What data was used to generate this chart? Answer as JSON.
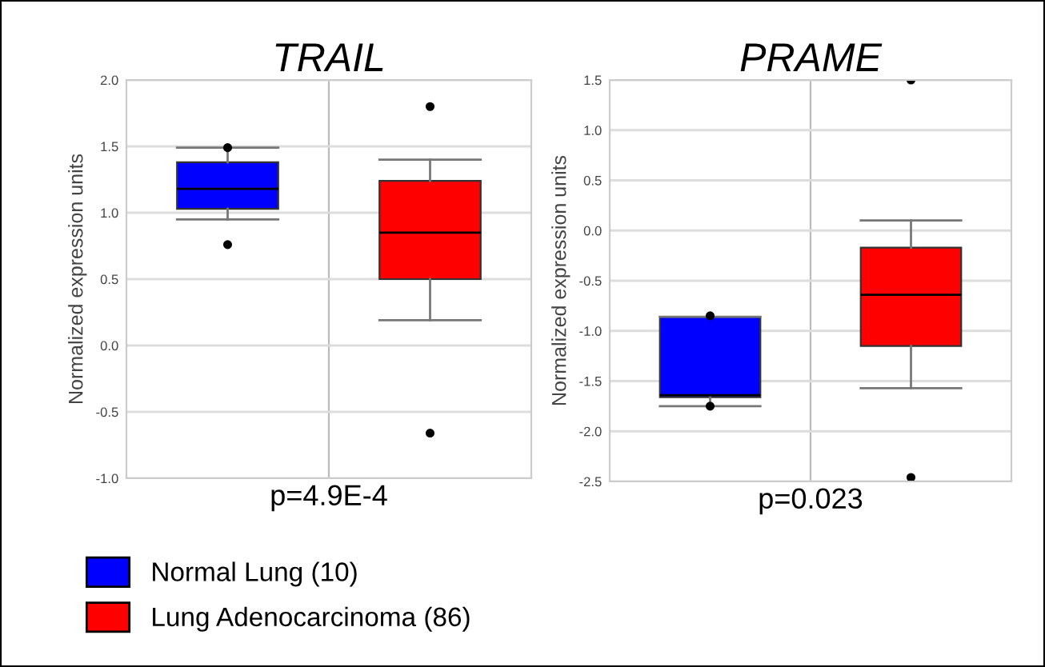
{
  "chart_data": [
    {
      "type": "box",
      "title": "TRAIL",
      "ylabel": "Normalized expression units",
      "categories": [
        null,
        null
      ],
      "ylim": [
        -1.0,
        2.0
      ],
      "yticks": [
        {
          "value": -1.0,
          "label": "-1.0"
        },
        {
          "value": -0.5,
          "label": "-0.5"
        },
        {
          "value": 0.0,
          "label": "0.0"
        },
        {
          "value": 0.5,
          "label": "0.5"
        },
        {
          "value": 1.0,
          "label": "1.0"
        },
        {
          "value": 1.5,
          "label": "1.5"
        },
        {
          "value": 2.0,
          "label": "2.0"
        }
      ],
      "grid": true,
      "legend": "bottom",
      "annotations": [
        "p=4.9E-4"
      ],
      "series": [
        {
          "name": "Normal Lung (10)",
          "color": "#0000ff",
          "boxes": [
            {
              "low": 0.95,
              "q1": 1.03,
              "median": 1.18,
              "q3": 1.38,
              "high": 1.49,
              "outliers": [
                1.49,
                0.76
              ]
            },
            null
          ]
        },
        {
          "name": "Lung Adenocarcinoma (86)",
          "color": "#ff0000",
          "boxes": [
            null,
            {
              "low": 0.19,
              "q1": 0.5,
              "median": 0.85,
              "q3": 1.24,
              "high": 1.4,
              "outliers": [
                1.8,
                -0.66
              ]
            }
          ]
        }
      ]
    },
    {
      "type": "box",
      "title": "PRAME",
      "ylabel": "Normalized expression units",
      "categories": [
        null,
        null
      ],
      "ylim": [
        -2.5,
        1.5
      ],
      "yticks": [
        {
          "value": -2.5,
          "label": "-2.5"
        },
        {
          "value": -2.0,
          "label": "-2.0"
        },
        {
          "value": -1.5,
          "label": "-1.5"
        },
        {
          "value": -1.0,
          "label": "-1.0"
        },
        {
          "value": -0.5,
          "label": "-0.5"
        },
        {
          "value": 0.0,
          "label": "0.0"
        },
        {
          "value": 0.5,
          "label": "0.5"
        },
        {
          "value": 1.0,
          "label": "1.0"
        },
        {
          "value": 1.5,
          "label": "1.5"
        }
      ],
      "grid": true,
      "annotations": [
        "p=0.023"
      ],
      "series": [
        {
          "color": "#0000ff",
          "boxes": [
            {
              "low": -1.75,
              "q1": -1.66,
              "median": -1.64,
              "q3": -0.86,
              "high": -0.86,
              "outliers": [
                -0.85,
                -1.75
              ]
            },
            null
          ]
        },
        {
          "color": "#ff0000",
          "boxes": [
            null,
            {
              "low": -1.57,
              "q1": -1.15,
              "median": -0.64,
              "q3": -0.17,
              "high": 0.1,
              "outliers": [
                1.5,
                -2.46
              ]
            }
          ]
        }
      ]
    }
  ]
}
